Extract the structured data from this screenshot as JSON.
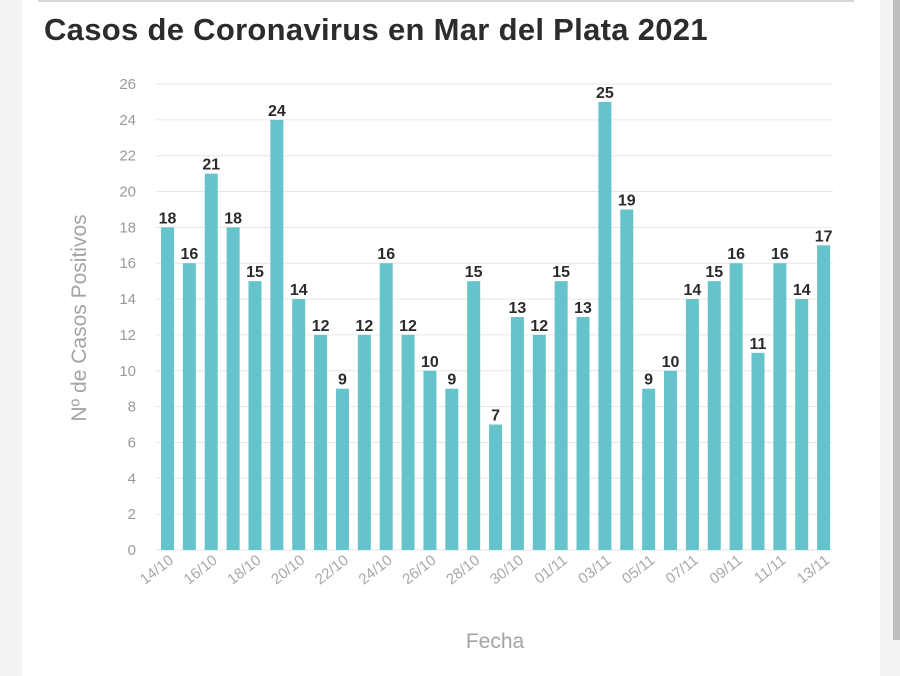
{
  "chart_data": {
    "type": "bar",
    "title": "Casos de Coronavirus en Mar del Plata 2021",
    "xlabel": "Fecha",
    "ylabel": "Nº de Casos Positivos",
    "ylim": [
      0,
      26
    ],
    "yticks": [
      0,
      2,
      4,
      6,
      8,
      10,
      12,
      14,
      16,
      18,
      20,
      22,
      24,
      26
    ],
    "grid": true,
    "color": "#64c3cb",
    "categories": [
      "14/10",
      "15/10",
      "16/10",
      "17/10",
      "18/10",
      "19/10",
      "20/10",
      "21/10",
      "22/10",
      "23/10",
      "24/10",
      "25/10",
      "26/10",
      "27/10",
      "28/10",
      "29/10",
      "30/10",
      "31/10",
      "01/11",
      "02/11",
      "03/11",
      "04/11",
      "05/11",
      "06/11",
      "07/11",
      "08/11",
      "09/11",
      "10/11",
      "11/11",
      "12/11",
      "13/11"
    ],
    "tick_labels": [
      "14/10",
      "16/10",
      "18/10",
      "20/10",
      "22/10",
      "24/10",
      "26/10",
      "28/10",
      "30/10",
      "01/11",
      "03/11",
      "05/11",
      "07/11",
      "09/11",
      "11/11",
      "13/11"
    ],
    "values": [
      18,
      16,
      21,
      18,
      15,
      24,
      14,
      12,
      9,
      12,
      16,
      12,
      10,
      9,
      15,
      7,
      13,
      12,
      15,
      13,
      25,
      19,
      9,
      10,
      14,
      15,
      16,
      11,
      16,
      14,
      17
    ]
  }
}
